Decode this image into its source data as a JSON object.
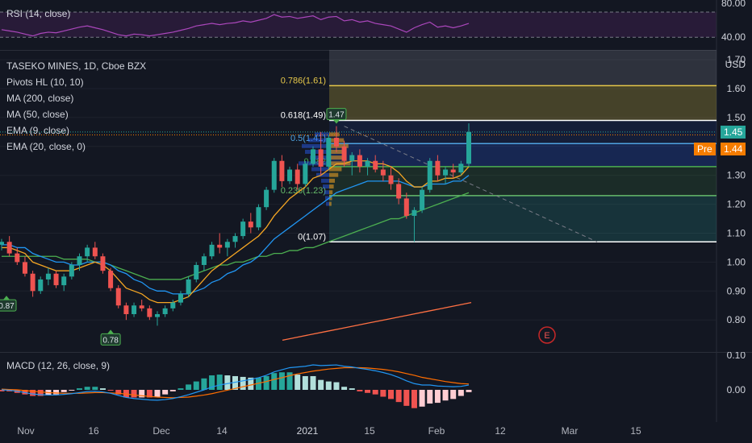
{
  "rsi": {
    "legend": "RSI (14, close)",
    "levels": [
      "80.00",
      "40.00"
    ]
  },
  "main": {
    "legend": [
      "TASEKO MINES, 1D, Cboe BZX",
      "Pivots HL (10, 10)",
      "MA (200, close)",
      "MA (50, close)",
      "EMA (9, close)",
      "EMA (20, close, 0)"
    ],
    "currency": "USD",
    "price_ticks": [
      "1.70",
      "1.60",
      "1.50",
      "1.40",
      "1.30",
      "1.20",
      "1.10",
      "1.00",
      "0.90",
      "0.80"
    ],
    "last_price": "1.45",
    "pre_label": "Pre",
    "pre_price": "1.44",
    "fib_labels": {
      "f786": "0.786(1.61)",
      "f618": "0.618(1.49)",
      "f5": "0.5(1.41)",
      "f382": "0.382",
      "f236": "0.236(1.23)",
      "f0": "0(1.07)"
    },
    "pivot_high": "1.47",
    "pivot_low_1": "0.87",
    "pivot_low_2": "0.78",
    "earnings_icon": "E",
    "colors": {
      "up": "#26a69a",
      "down": "#ef5350",
      "ema9": "#f5a623",
      "ema20": "#2196f3",
      "ma50": "#4caf50",
      "ma200": "#ff7043",
      "fib_gold": "#e6c84a",
      "rsi": "#ab47bc",
      "macd": "#2196f3",
      "signal": "#ff6d00"
    }
  },
  "macd": {
    "legend": "MACD (12, 26, close, 9)",
    "ticks": [
      "0.10",
      "0.00"
    ]
  },
  "time_axis": [
    "Nov",
    "16",
    "Dec",
    "14",
    "2021",
    "15",
    "Feb",
    "12",
    "Mar",
    "15"
  ],
  "chart_data": {
    "type": "candlestick",
    "series": [
      {
        "name": "TASEKO MINES",
        "ohlc": [
          [
            1.06,
            1.08,
            1.04,
            1.07
          ],
          [
            1.07,
            1.09,
            1.02,
            1.03
          ],
          [
            1.03,
            1.05,
            0.99,
            1.0
          ],
          [
            1.0,
            1.02,
            0.95,
            0.96
          ],
          [
            0.96,
            0.97,
            0.88,
            0.9
          ],
          [
            0.9,
            0.95,
            0.89,
            0.94
          ],
          [
            0.94,
            0.98,
            0.92,
            0.96
          ],
          [
            0.96,
            0.97,
            0.91,
            0.92
          ],
          [
            0.92,
            0.96,
            0.9,
            0.95
          ],
          [
            0.95,
            1.0,
            0.94,
            0.99
          ],
          [
            0.99,
            1.03,
            0.97,
            1.02
          ],
          [
            1.02,
            1.06,
            1.0,
            1.05
          ],
          [
            1.05,
            1.07,
            1.01,
            1.02
          ],
          [
            1.02,
            1.03,
            0.96,
            0.97
          ],
          [
            0.97,
            0.98,
            0.9,
            0.91
          ],
          [
            0.91,
            0.92,
            0.84,
            0.85
          ],
          [
            0.85,
            0.86,
            0.8,
            0.82
          ],
          [
            0.82,
            0.86,
            0.81,
            0.85
          ],
          [
            0.85,
            0.87,
            0.83,
            0.84
          ],
          [
            0.84,
            0.85,
            0.8,
            0.81
          ],
          [
            0.81,
            0.83,
            0.78,
            0.82
          ],
          [
            0.82,
            0.85,
            0.81,
            0.84
          ],
          [
            0.84,
            0.87,
            0.83,
            0.86
          ],
          [
            0.86,
            0.9,
            0.85,
            0.89
          ],
          [
            0.89,
            0.95,
            0.88,
            0.94
          ],
          [
            0.94,
            1.0,
            0.93,
            0.99
          ],
          [
            0.99,
            1.03,
            0.97,
            1.02
          ],
          [
            1.02,
            1.07,
            1.01,
            1.06
          ],
          [
            1.06,
            1.1,
            1.03,
            1.05
          ],
          [
            1.05,
            1.08,
            1.02,
            1.07
          ],
          [
            1.07,
            1.1,
            1.05,
            1.09
          ],
          [
            1.09,
            1.15,
            1.08,
            1.14
          ],
          [
            1.14,
            1.17,
            1.1,
            1.12
          ],
          [
            1.12,
            1.2,
            1.11,
            1.19
          ],
          [
            1.19,
            1.26,
            1.18,
            1.25
          ],
          [
            1.25,
            1.36,
            1.24,
            1.35
          ],
          [
            1.35,
            1.37,
            1.26,
            1.28
          ],
          [
            1.28,
            1.33,
            1.27,
            1.32
          ],
          [
            1.32,
            1.34,
            1.25,
            1.27
          ],
          [
            1.27,
            1.35,
            1.26,
            1.34
          ],
          [
            1.34,
            1.4,
            1.33,
            1.39
          ],
          [
            1.39,
            1.45,
            1.3,
            1.33
          ],
          [
            1.33,
            1.44,
            1.32,
            1.43
          ],
          [
            1.43,
            1.47,
            1.38,
            1.4
          ],
          [
            1.4,
            1.42,
            1.33,
            1.35
          ],
          [
            1.35,
            1.38,
            1.3,
            1.37
          ],
          [
            1.37,
            1.39,
            1.31,
            1.33
          ],
          [
            1.33,
            1.36,
            1.3,
            1.35
          ],
          [
            1.35,
            1.37,
            1.31,
            1.32
          ],
          [
            1.32,
            1.35,
            1.28,
            1.3
          ],
          [
            1.3,
            1.33,
            1.25,
            1.27
          ],
          [
            1.27,
            1.29,
            1.2,
            1.22
          ],
          [
            1.22,
            1.24,
            1.15,
            1.16
          ],
          [
            1.16,
            1.19,
            1.07,
            1.18
          ],
          [
            1.18,
            1.26,
            1.17,
            1.25
          ],
          [
            1.25,
            1.36,
            1.24,
            1.35
          ],
          [
            1.35,
            1.37,
            1.28,
            1.3
          ],
          [
            1.3,
            1.33,
            1.27,
            1.32
          ],
          [
            1.32,
            1.34,
            1.29,
            1.31
          ],
          [
            1.31,
            1.35,
            1.3,
            1.34
          ],
          [
            1.34,
            1.48,
            1.33,
            1.45
          ]
        ]
      }
    ],
    "ema9": [
      1.05,
      1.05,
      1.04,
      1.03,
      1.0,
      0.99,
      0.98,
      0.97,
      0.97,
      0.97,
      0.98,
      0.99,
      1.0,
      0.99,
      0.97,
      0.94,
      0.91,
      0.9,
      0.89,
      0.87,
      0.86,
      0.86,
      0.86,
      0.87,
      0.88,
      0.91,
      0.94,
      0.97,
      0.99,
      1.01,
      1.03,
      1.05,
      1.07,
      1.09,
      1.12,
      1.16,
      1.19,
      1.22,
      1.24,
      1.26,
      1.29,
      1.3,
      1.32,
      1.34,
      1.34,
      1.35,
      1.35,
      1.35,
      1.34,
      1.34,
      1.33,
      1.31,
      1.28,
      1.26,
      1.26,
      1.28,
      1.28,
      1.29,
      1.29,
      1.3,
      1.33
    ],
    "ema20": [
      1.06,
      1.06,
      1.05,
      1.05,
      1.03,
      1.02,
      1.01,
      1.0,
      1.0,
      0.99,
      0.99,
      1.0,
      1.0,
      1.0,
      0.99,
      0.97,
      0.96,
      0.94,
      0.93,
      0.91,
      0.9,
      0.9,
      0.89,
      0.89,
      0.89,
      0.9,
      0.91,
      0.93,
      0.94,
      0.96,
      0.97,
      0.99,
      1.0,
      1.02,
      1.05,
      1.08,
      1.1,
      1.12,
      1.14,
      1.16,
      1.18,
      1.2,
      1.22,
      1.24,
      1.25,
      1.26,
      1.27,
      1.28,
      1.28,
      1.28,
      1.28,
      1.28,
      1.27,
      1.26,
      1.26,
      1.27,
      1.27,
      1.27,
      1.28,
      1.28,
      1.3
    ],
    "ma50": [
      1.02,
      1.02,
      1.02,
      1.02,
      1.02,
      1.02,
      1.02,
      1.02,
      1.01,
      1.01,
      1.01,
      1.01,
      1.0,
      1.0,
      0.99,
      0.98,
      0.97,
      0.96,
      0.95,
      0.94,
      0.94,
      0.94,
      0.94,
      0.94,
      0.95,
      0.96,
      0.97,
      0.98,
      0.99,
      0.99,
      1.0,
      1.0,
      1.01,
      1.02,
      1.02,
      1.03,
      1.03,
      1.04,
      1.04,
      1.05,
      1.05,
      1.06,
      1.07,
      1.08,
      1.09,
      1.1,
      1.11,
      1.12,
      1.13,
      1.14,
      1.15,
      1.15,
      1.16,
      1.17,
      1.18,
      1.19,
      1.2,
      1.21,
      1.22,
      1.23,
      1.24
    ],
    "ma200": [
      0.73,
      0.74,
      0.75,
      0.76,
      0.77,
      0.78,
      0.79,
      0.8,
      0.81,
      0.82,
      0.83,
      0.84,
      0.85,
      0.86
    ],
    "rsi": [
      52,
      50,
      48,
      45,
      42,
      46,
      48,
      47,
      50,
      53,
      56,
      58,
      55,
      52,
      48,
      44,
      42,
      45,
      44,
      42,
      44,
      46,
      48,
      51,
      54,
      58,
      60,
      62,
      60,
      62,
      63,
      66,
      64,
      67,
      70,
      76,
      72,
      73,
      70,
      72,
      74,
      68,
      72,
      73,
      66,
      68,
      64,
      66,
      62,
      60,
      58,
      53,
      48,
      55,
      60,
      64,
      56,
      58,
      55,
      58,
      62
    ],
    "macd": [
      0.0,
      -0.001,
      -0.004,
      -0.008,
      -0.012,
      -0.014,
      -0.015,
      -0.015,
      -0.013,
      -0.011,
      -0.008,
      -0.005,
      -0.004,
      -0.006,
      -0.01,
      -0.016,
      -0.022,
      -0.025,
      -0.027,
      -0.029,
      -0.03,
      -0.028,
      -0.025,
      -0.02,
      -0.014,
      -0.007,
      0.0,
      0.008,
      0.014,
      0.018,
      0.022,
      0.026,
      0.03,
      0.035,
      0.042,
      0.052,
      0.058,
      0.064,
      0.066,
      0.068,
      0.072,
      0.07,
      0.071,
      0.072,
      0.068,
      0.066,
      0.062,
      0.059,
      0.055,
      0.05,
      0.044,
      0.036,
      0.026,
      0.018,
      0.014,
      0.014,
      0.011,
      0.01,
      0.009,
      0.01,
      0.014
    ],
    "signal": [
      0.002,
      0.001,
      0.0,
      -0.002,
      -0.004,
      -0.006,
      -0.008,
      -0.009,
      -0.01,
      -0.01,
      -0.01,
      -0.009,
      -0.008,
      -0.008,
      -0.009,
      -0.01,
      -0.012,
      -0.015,
      -0.017,
      -0.019,
      -0.021,
      -0.022,
      -0.023,
      -0.022,
      -0.021,
      -0.018,
      -0.015,
      -0.011,
      -0.006,
      -0.001,
      0.004,
      0.009,
      0.014,
      0.019,
      0.024,
      0.03,
      0.035,
      0.041,
      0.046,
      0.05,
      0.054,
      0.057,
      0.06,
      0.062,
      0.064,
      0.064,
      0.064,
      0.063,
      0.061,
      0.059,
      0.056,
      0.052,
      0.047,
      0.042,
      0.036,
      0.032,
      0.028,
      0.024,
      0.021,
      0.018,
      0.017
    ]
  }
}
